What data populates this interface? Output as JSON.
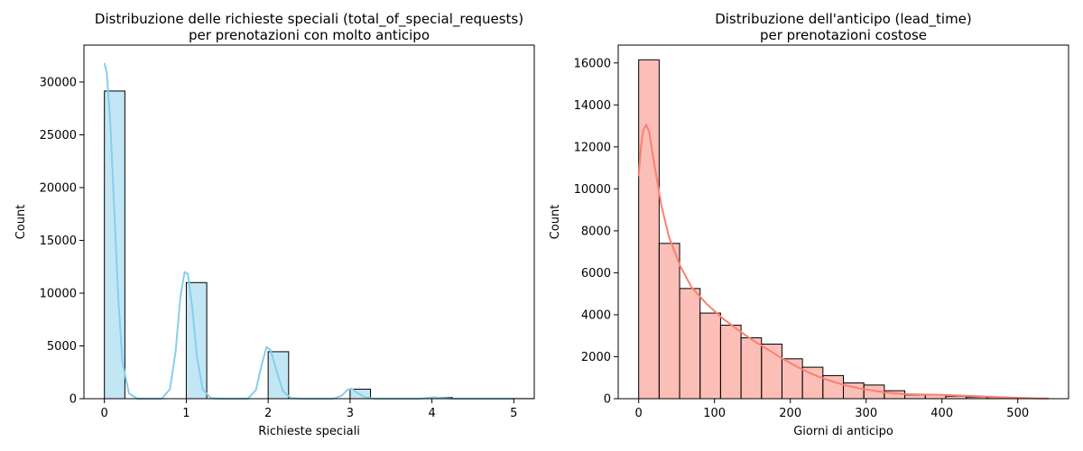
{
  "chart_data": [
    {
      "type": "bar",
      "title": "Distribuzione delle richieste speciali (total_of_special_requests)\nper prenotazioni con molto anticipo",
      "xlabel": "Richieste speciali",
      "ylabel": "Count",
      "xlim": [
        -0.25,
        5.25
      ],
      "ylim": [
        0,
        33500
      ],
      "xticks": [
        0,
        1,
        2,
        3,
        4,
        5
      ],
      "yticks": [
        0,
        5000,
        10000,
        15000,
        20000,
        25000,
        30000
      ],
      "bar_color": "#87CEEB",
      "kde_color": "#87CEEB",
      "bins": [
        {
          "x0": 0,
          "x1": 0.25,
          "count": 29150
        },
        {
          "x0": 1,
          "x1": 1.25,
          "count": 11000
        },
        {
          "x0": 2,
          "x1": 2.25,
          "count": 4450
        },
        {
          "x0": 3,
          "x1": 3.25,
          "count": 900
        },
        {
          "x0": 4,
          "x1": 4.25,
          "count": 110
        },
        {
          "x0": 5,
          "x1": 5.25,
          "count": 10
        }
      ],
      "kde": [
        [
          0,
          31800
        ],
        [
          0.03,
          30800
        ],
        [
          0.07,
          26500
        ],
        [
          0.12,
          18000
        ],
        [
          0.17,
          9500
        ],
        [
          0.22,
          3500
        ],
        [
          0.3,
          500
        ],
        [
          0.4,
          0
        ],
        [
          0.7,
          0
        ],
        [
          0.8,
          900
        ],
        [
          0.87,
          4500
        ],
        [
          0.93,
          9800
        ],
        [
          0.98,
          12000
        ],
        [
          1.02,
          11800
        ],
        [
          1.07,
          8800
        ],
        [
          1.13,
          4000
        ],
        [
          1.2,
          900
        ],
        [
          1.3,
          50
        ],
        [
          1.4,
          0
        ],
        [
          1.75,
          0
        ],
        [
          1.85,
          800
        ],
        [
          1.92,
          3200
        ],
        [
          1.98,
          4900
        ],
        [
          2.03,
          4600
        ],
        [
          2.1,
          2700
        ],
        [
          2.18,
          700
        ],
        [
          2.28,
          50
        ],
        [
          2.4,
          0
        ],
        [
          2.8,
          0
        ],
        [
          2.9,
          300
        ],
        [
          2.97,
          850
        ],
        [
          3.02,
          950
        ],
        [
          3.08,
          600
        ],
        [
          3.18,
          150
        ],
        [
          3.3,
          0
        ],
        [
          3.85,
          0
        ],
        [
          3.95,
          80
        ],
        [
          4.02,
          130
        ],
        [
          4.1,
          80
        ],
        [
          4.25,
          0
        ],
        [
          4.6,
          0
        ],
        [
          5.0,
          0
        ]
      ]
    },
    {
      "type": "bar",
      "title": "Distribuzione dell'anticipo (lead_time)\nper prenotazioni costose",
      "xlabel": "Giorni di anticipo",
      "ylabel": "Count",
      "xlim": [
        -27,
        567
      ],
      "ylim": [
        0,
        16850
      ],
      "xticks": [
        0,
        100,
        200,
        300,
        400,
        500
      ],
      "yticks": [
        0,
        2000,
        4000,
        6000,
        8000,
        10000,
        12000,
        14000,
        16000
      ],
      "bar_color": "#FA8072",
      "kde_color": "#FA8072",
      "bins": [
        {
          "x0": 0,
          "x1": 27,
          "count": 16150
        },
        {
          "x0": 27,
          "x1": 54,
          "count": 7400
        },
        {
          "x0": 54,
          "x1": 81,
          "count": 5250
        },
        {
          "x0": 81,
          "x1": 108,
          "count": 4080
        },
        {
          "x0": 108,
          "x1": 135,
          "count": 3500
        },
        {
          "x0": 135,
          "x1": 162,
          "count": 2900
        },
        {
          "x0": 162,
          "x1": 189,
          "count": 2600
        },
        {
          "x0": 189,
          "x1": 216,
          "count": 1900
        },
        {
          "x0": 216,
          "x1": 243,
          "count": 1500
        },
        {
          "x0": 243,
          "x1": 270,
          "count": 1100
        },
        {
          "x0": 270,
          "x1": 297,
          "count": 750
        },
        {
          "x0": 297,
          "x1": 324,
          "count": 650
        },
        {
          "x0": 324,
          "x1": 351,
          "count": 380
        },
        {
          "x0": 351,
          "x1": 378,
          "count": 180
        },
        {
          "x0": 378,
          "x1": 405,
          "count": 180
        },
        {
          "x0": 405,
          "x1": 432,
          "count": 120
        },
        {
          "x0": 432,
          "x1": 459,
          "count": 80
        },
        {
          "x0": 459,
          "x1": 486,
          "count": 60
        },
        {
          "x0": 486,
          "x1": 513,
          "count": 30
        },
        {
          "x0": 513,
          "x1": 540,
          "count": 20
        }
      ],
      "kde": [
        [
          0,
          10600
        ],
        [
          3,
          12000
        ],
        [
          6,
          12800
        ],
        [
          10,
          13050
        ],
        [
          14,
          12700
        ],
        [
          20,
          11300
        ],
        [
          30,
          9200
        ],
        [
          40,
          7700
        ],
        [
          55,
          6300
        ],
        [
          70,
          5300
        ],
        [
          90,
          4500
        ],
        [
          110,
          3850
        ],
        [
          130,
          3300
        ],
        [
          150,
          2800
        ],
        [
          170,
          2350
        ],
        [
          190,
          1900
        ],
        [
          210,
          1500
        ],
        [
          230,
          1150
        ],
        [
          250,
          880
        ],
        [
          270,
          660
        ],
        [
          290,
          500
        ],
        [
          310,
          380
        ],
        [
          330,
          280
        ],
        [
          350,
          220
        ],
        [
          370,
          200
        ],
        [
          390,
          190
        ],
        [
          410,
          170
        ],
        [
          430,
          140
        ],
        [
          450,
          110
        ],
        [
          470,
          80
        ],
        [
          490,
          50
        ],
        [
          510,
          30
        ],
        [
          530,
          15
        ],
        [
          540,
          10
        ]
      ]
    }
  ]
}
